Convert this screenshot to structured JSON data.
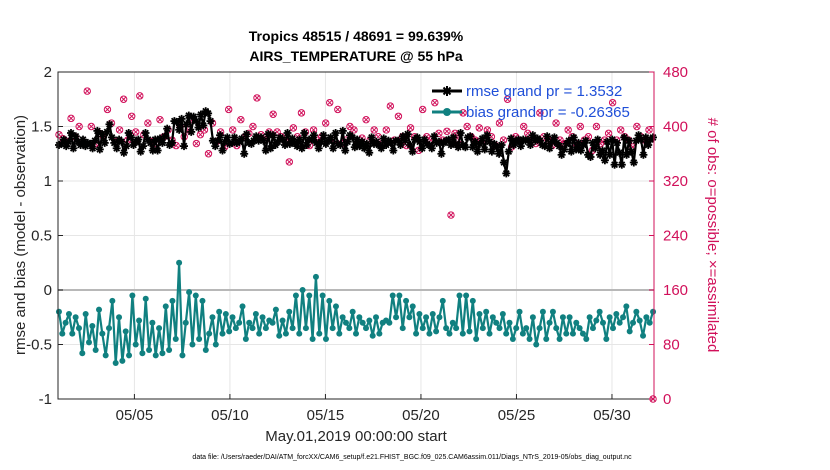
{
  "chart_data": {
    "type": "line",
    "title": "Tropics 48515 / 48691 = 99.639%",
    "subtitle": "AIRS_TEMPERATURE @ 55 hPa",
    "xlabel": "May.01,2019 00:00:00 start",
    "ylabel": "rmse and bias (model - observation)",
    "ylabel_right": "# of obs: o=possible; ×=assimilated",
    "xlim": [
      1,
      32.2
    ],
    "ylim": [
      -1,
      2
    ],
    "ylim_right": [
      0,
      480
    ],
    "xticks": [
      5,
      10,
      15,
      20,
      25,
      30
    ],
    "xtick_labels": [
      "05/05",
      "05/10",
      "05/15",
      "05/20",
      "05/25",
      "05/30"
    ],
    "yticks": [
      -1,
      -0.5,
      0,
      0.5,
      1,
      1.5,
      2
    ],
    "ytick_labels": [
      "-1",
      "-0.5",
      "0",
      "0.5",
      "1",
      "1.5",
      "2"
    ],
    "yticks_right": [
      0,
      80,
      160,
      240,
      320,
      400,
      480
    ],
    "ytick_labels_right": [
      "0",
      "80",
      "160",
      "240",
      "320",
      "400",
      "480"
    ],
    "zero_line": 0,
    "grid": true,
    "legend_position": "top-right",
    "footnote": "data file: /Users/raeder/DAI/ATM_forcXX/CAM6_setup/f.e21.FHIST_BGC.f09_025.CAM6assim.011/Diags_NTrS_2019-05/obs_diag_output.nc",
    "series": [
      {
        "name": "rmse grand pr = 1.3532",
        "color": "#000000",
        "marker": "asterisk",
        "axis": "left",
        "values": [
          1.33,
          1.34,
          1.38,
          1.32,
          1.36,
          1.44,
          1.3,
          1.41,
          1.36,
          1.33,
          1.38,
          1.32,
          1.35,
          1.34,
          1.3,
          1.37,
          1.46,
          1.29,
          1.43,
          1.35,
          1.45,
          1.52,
          1.4,
          1.35,
          1.3,
          1.38,
          1.36,
          1.26,
          1.32,
          1.44,
          1.4,
          1.33,
          1.36,
          1.38,
          1.27,
          1.32,
          1.44,
          1.38,
          1.35,
          1.28,
          1.38,
          1.28,
          1.39,
          1.35,
          1.41,
          1.48,
          1.33,
          1.35,
          1.55,
          1.54,
          1.47,
          1.57,
          1.32,
          1.52,
          1.6,
          1.45,
          1.59,
          1.55,
          1.49,
          1.61,
          1.51,
          1.64,
          1.62,
          1.55,
          1.37,
          1.32,
          1.37,
          1.42,
          1.28,
          1.36,
          1.4,
          1.34,
          1.35,
          1.4,
          1.35,
          1.36,
          1.39,
          1.25,
          1.43,
          1.35,
          1.34,
          1.37,
          1.41,
          1.37,
          1.4,
          1.37,
          1.28,
          1.43,
          1.3,
          1.42,
          1.33,
          1.36,
          1.4,
          1.38,
          1.33,
          1.44,
          1.34,
          1.39,
          1.35,
          1.32,
          1.38,
          1.3,
          1.44,
          1.33,
          1.38,
          1.38,
          1.42,
          1.35,
          1.3,
          1.36,
          1.42,
          1.34,
          1.37,
          1.4,
          1.3,
          1.44,
          1.34,
          1.33,
          1.46,
          1.28,
          1.36,
          1.42,
          1.4,
          1.31,
          1.38,
          1.32,
          1.36,
          1.3,
          1.34,
          1.26,
          1.4,
          1.34,
          1.36,
          1.33,
          1.3,
          1.39,
          1.33,
          1.37,
          1.35,
          1.28,
          1.37,
          1.37,
          1.33,
          1.41,
          1.37,
          1.43,
          1.33,
          1.27,
          1.38,
          1.4,
          1.36,
          1.3,
          1.38,
          1.34,
          1.33,
          1.3,
          1.41,
          1.35,
          1.36,
          1.25,
          1.35,
          1.37,
          1.38,
          1.33,
          1.4,
          1.34,
          1.31,
          1.44,
          1.33,
          1.31,
          1.4,
          1.41,
          1.31,
          1.36,
          1.27,
          1.34,
          1.39,
          1.29,
          1.42,
          1.36,
          1.27,
          1.34,
          1.31,
          1.25,
          1.33,
          1.17,
          1.07,
          1.27,
          1.39,
          1.33,
          1.36,
          1.38,
          1.32,
          1.38,
          1.37,
          1.38,
          1.33,
          1.42,
          1.37,
          1.39,
          1.37,
          1.33,
          1.32,
          1.41,
          1.3,
          1.36,
          1.4,
          1.35,
          1.32,
          1.24,
          1.29,
          1.34,
          1.37,
          1.27,
          1.4,
          1.29,
          1.35,
          1.28,
          1.33,
          1.37,
          1.24,
          1.22,
          1.35,
          1.3,
          1.38,
          1.24,
          1.28,
          1.19,
          1.36,
          1.24,
          1.38,
          1.15,
          1.35,
          1.26,
          1.15,
          1.4,
          1.24,
          1.37,
          1.27,
          1.17,
          1.37,
          1.42,
          1.38,
          1.24,
          1.4,
          1.33,
          1.38,
          1.4
        ]
      },
      {
        "name": "bias grand pr = -0.26365",
        "color": "#108080",
        "marker": "dot",
        "axis": "left",
        "values": [
          -0.2,
          -0.4,
          -0.3,
          -0.22,
          -0.4,
          -0.25,
          -0.35,
          -0.58,
          -0.22,
          -0.48,
          -0.33,
          -0.55,
          -0.18,
          -0.4,
          -0.6,
          -0.35,
          -0.1,
          -0.67,
          -0.25,
          -0.65,
          -0.38,
          -0.6,
          -0.05,
          -0.5,
          -0.28,
          -0.58,
          -0.08,
          -0.55,
          -0.3,
          -0.6,
          -0.35,
          -0.58,
          -0.15,
          -0.55,
          -0.1,
          -0.45,
          0.25,
          -0.6,
          -0.3,
          -0.02,
          -0.5,
          -0.05,
          -0.45,
          -0.1,
          -0.55,
          -0.4,
          -0.25,
          -0.5,
          -0.2,
          -0.4,
          -0.22,
          -0.38,
          -0.25,
          -0.35,
          -0.3,
          -0.15,
          -0.45,
          -0.3,
          -0.35,
          -0.22,
          -0.4,
          -0.25,
          -0.35,
          -0.28,
          -0.3,
          -0.18,
          -0.42,
          -0.28,
          -0.4,
          -0.2,
          -0.35,
          -0.05,
          -0.4,
          0.0,
          -0.35,
          -0.05,
          -0.45,
          0.12,
          -0.4,
          -0.05,
          -0.45,
          -0.1,
          -0.35,
          -0.15,
          -0.4,
          -0.25,
          -0.3,
          -0.35,
          -0.2,
          -0.4,
          -0.25,
          -0.3,
          -0.35,
          -0.28,
          -0.42,
          -0.25,
          -0.4,
          -0.3,
          -0.28,
          -0.3,
          -0.05,
          -0.25,
          -0.05,
          -0.35,
          -0.1,
          -0.25,
          -0.15,
          -0.4,
          -0.22,
          -0.35,
          -0.25,
          -0.4,
          -0.22,
          -0.38,
          -0.25,
          -0.1,
          -0.35,
          -0.4,
          -0.3,
          -0.35,
          -0.05,
          -0.4,
          -0.05,
          -0.38,
          -0.1,
          -0.45,
          -0.22,
          -0.35,
          -0.2,
          -0.4,
          -0.25,
          -0.3,
          -0.35,
          -0.22,
          -0.4,
          -0.3,
          -0.45,
          -0.35,
          -0.2,
          -0.4,
          -0.35,
          -0.45,
          -0.25,
          -0.5,
          -0.35,
          -0.2,
          -0.45,
          -0.3,
          -0.2,
          -0.35,
          -0.45,
          -0.25,
          -0.4,
          -0.25,
          -0.4,
          -0.3,
          -0.35,
          -0.4,
          -0.45,
          -0.25,
          -0.35,
          -0.28,
          -0.2,
          -0.3,
          -0.45,
          -0.25,
          -0.35,
          -0.22,
          -0.3,
          -0.25,
          -0.15,
          -0.38,
          -0.3,
          -0.2,
          -0.28,
          -0.42,
          -0.25,
          -0.3,
          -0.2
        ]
      }
    ],
    "obs_counts": {
      "axis": "right",
      "color": "#d1105a",
      "possible_marker": "circle",
      "assimilated_marker": "cross",
      "values": [
        388,
        382,
        378,
        412,
        385,
        400,
        375,
        452,
        400,
        375,
        390,
        385,
        425,
        405,
        378,
        395,
        440,
        380,
        415,
        392,
        445,
        388,
        405,
        378,
        375,
        410,
        385,
        395,
        380,
        372,
        400,
        385,
        395,
        410,
        375,
        388,
        395,
        360,
        405,
        378,
        392,
        370,
        425,
        395,
        372,
        410,
        385,
        390,
        400,
        442,
        388,
        380,
        392,
        418,
        392,
        385,
        378,
        348,
        398,
        385,
        420,
        392,
        372,
        395,
        380,
        385,
        405,
        435,
        380,
        425,
        375,
        380,
        400,
        395,
        375,
        383,
        410,
        380,
        395,
        385,
        375,
        395,
        430,
        380,
        415,
        385,
        372,
        398,
        385,
        365,
        425,
        385,
        380,
        435,
        390,
        380,
        393,
        270,
        390,
        380,
        420,
        400,
        385,
        380,
        398,
        380,
        395,
        385,
        372,
        405,
        380,
        440,
        370,
        385,
        380,
        400,
        390,
        380,
        375,
        420,
        385,
        380,
        372,
        405,
        380,
        375,
        395,
        385,
        375,
        400,
        380,
        385,
        365,
        400,
        375,
        380,
        390,
        435,
        380,
        395,
        385,
        380,
        370,
        400,
        385,
        380,
        395,
        0
      ]
    }
  },
  "legend": {
    "rmse_label": "rmse grand pr = 1.3532",
    "bias_label": "bias grand pr = -0.26365"
  }
}
